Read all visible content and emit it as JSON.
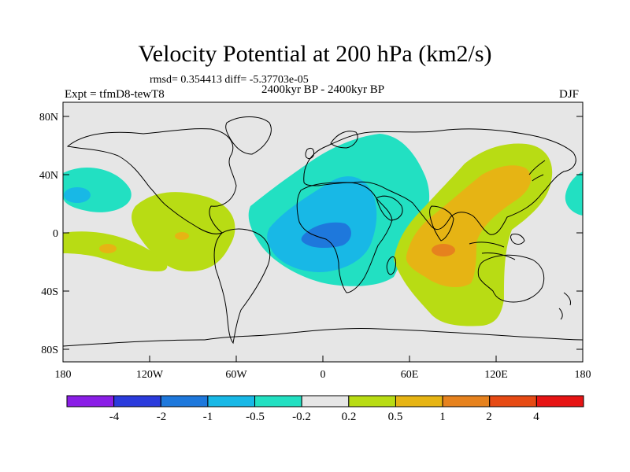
{
  "title": "Velocity Potential at 200 hPa (km2/s)",
  "stats": "rmsd= 0.354413 diff= -5.37703e-05",
  "expt": "Expt = tfmD8-tewT8",
  "period": "2400kyr BP - 2400kyr BP",
  "season": "DJF",
  "lat_labels": [
    "80N",
    "40N",
    "0",
    "40S",
    "80S"
  ],
  "lon_labels": [
    "180",
    "120W",
    "60W",
    "0",
    "60E",
    "120E",
    "180"
  ],
  "colorbar": {
    "labels": [
      "-4",
      "-2",
      "-1",
      "-0.5",
      "-0.2",
      "0.2",
      "0.5",
      "1",
      "2",
      "4"
    ],
    "colors": [
      "#8a1ee6",
      "#2b3bdc",
      "#1e78dc",
      "#18b8e6",
      "#22e0c2",
      "#e6e6e6",
      "#b8dc14",
      "#e6b414",
      "#e6821e",
      "#e64a14",
      "#e61414"
    ]
  },
  "palette": {
    "ocean": "#e6e6e6",
    "teal": "#22e0c2",
    "cyan": "#18b8e6",
    "blue": "#1e78dc",
    "yellowgreen": "#b8dc14",
    "gold": "#e6b414",
    "orange": "#e6821e"
  }
}
